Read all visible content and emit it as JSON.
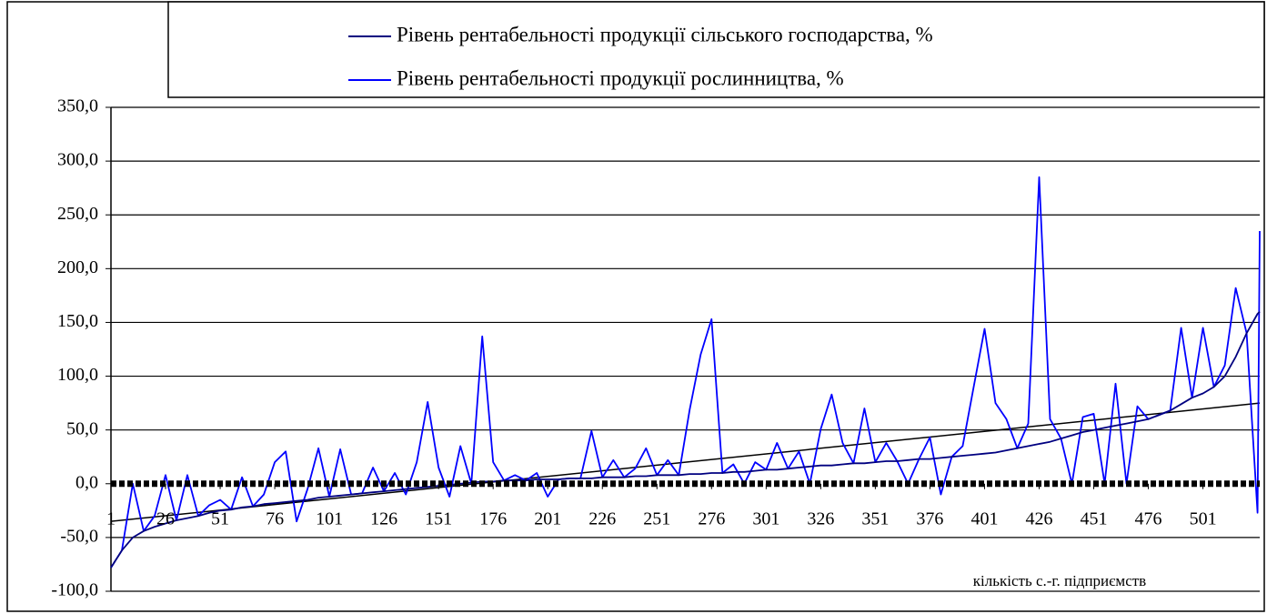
{
  "chart_data": {
    "type": "line",
    "xlabel": "кількість с.-г. підприємств",
    "x": [
      1,
      6,
      11,
      16,
      21,
      26,
      31,
      36,
      41,
      46,
      51,
      56,
      61,
      66,
      71,
      76,
      81,
      86,
      91,
      96,
      101,
      106,
      111,
      116,
      121,
      126,
      131,
      136,
      141,
      146,
      151,
      156,
      161,
      166,
      171,
      176,
      181,
      186,
      191,
      196,
      201,
      206,
      211,
      216,
      221,
      226,
      231,
      236,
      241,
      246,
      251,
      256,
      261,
      266,
      271,
      276,
      281,
      286,
      291,
      296,
      301,
      306,
      311,
      316,
      321,
      326,
      331,
      336,
      341,
      346,
      351,
      356,
      361,
      366,
      371,
      376,
      381,
      386,
      391,
      396,
      401,
      406,
      411,
      416,
      421,
      426,
      431,
      436,
      441,
      446,
      451,
      456,
      461,
      466,
      471,
      476,
      481,
      486,
      491,
      496,
      501,
      506,
      511,
      516,
      521,
      526,
      527
    ],
    "series": [
      {
        "name": "Рівень рентабельності продукції сільського господарства, %",
        "color": "#000080",
        "values": [
          -78,
          -62,
          -50,
          -44,
          -40,
          -37,
          -34,
          -32,
          -30,
          -27,
          -25,
          -24,
          -22,
          -21,
          -19,
          -18,
          -17,
          -16,
          -15,
          -13,
          -12,
          -11,
          -10,
          -9,
          -8,
          -7,
          -6,
          -5,
          -4,
          -3,
          -2,
          -1,
          0,
          1,
          2,
          2,
          3,
          3,
          3,
          4,
          4,
          4,
          5,
          5,
          5,
          6,
          6,
          6,
          7,
          7,
          8,
          8,
          8,
          9,
          9,
          10,
          10,
          11,
          11,
          12,
          13,
          13,
          14,
          15,
          16,
          17,
          17,
          18,
          19,
          19,
          20,
          21,
          21,
          22,
          23,
          23,
          24,
          25,
          26,
          27,
          28,
          29,
          31,
          33,
          35,
          37,
          39,
          42,
          45,
          48,
          50,
          52,
          54,
          56,
          58,
          60,
          64,
          68,
          74,
          80,
          84,
          90,
          100,
          118,
          140,
          158,
          160
        ]
      },
      {
        "name": "Рівень рентабельності продукції рослинництва, %",
        "color": "#0000ff",
        "values": [
          -78,
          -62,
          0,
          -44,
          -30,
          8,
          -34,
          8,
          -30,
          -20,
          -15,
          -24,
          6,
          -21,
          -10,
          20,
          30,
          -35,
          -5,
          33,
          -12,
          32,
          -10,
          -9,
          15,
          -7,
          10,
          -10,
          20,
          76,
          15,
          -12,
          35,
          0,
          137,
          20,
          3,
          8,
          3,
          10,
          -12,
          4,
          5,
          5,
          49,
          6,
          22,
          6,
          14,
          33,
          8,
          22,
          8,
          69,
          120,
          153,
          10,
          18,
          0,
          20,
          13,
          38,
          14,
          30,
          0,
          51,
          83,
          38,
          19,
          70,
          20,
          38,
          21,
          0,
          23,
          43,
          -10,
          25,
          35,
          90,
          144,
          75,
          60,
          33,
          56,
          285,
          60,
          42,
          0,
          62,
          65,
          0,
          93,
          0,
          72,
          60,
          64,
          68,
          145,
          80,
          145,
          90,
          110,
          182,
          140,
          -27,
          235
        ]
      }
    ],
    "trendline": {
      "x": [
        1,
        527
      ],
      "values": [
        -35,
        75
      ]
    },
    "xlim": [
      1,
      527
    ],
    "xticks": [
      1,
      26,
      51,
      76,
      101,
      126,
      151,
      176,
      201,
      226,
      251,
      276,
      301,
      326,
      351,
      376,
      401,
      426,
      451,
      476,
      501
    ],
    "ylim": [
      -100,
      350
    ],
    "yticks": [
      {
        "value": -100,
        "label": "-100,0"
      },
      {
        "value": -50,
        "label": "-50,0"
      },
      {
        "value": 0,
        "label": "0,0"
      },
      {
        "value": 50,
        "label": "50,0"
      },
      {
        "value": 100,
        "label": "100,0"
      },
      {
        "value": 150,
        "label": "150,0"
      },
      {
        "value": 200,
        "label": "200,0"
      },
      {
        "value": 250,
        "label": "250,0"
      },
      {
        "value": 300,
        "label": "300,0"
      },
      {
        "value": 350,
        "label": "350,0"
      }
    ],
    "grid": true
  }
}
